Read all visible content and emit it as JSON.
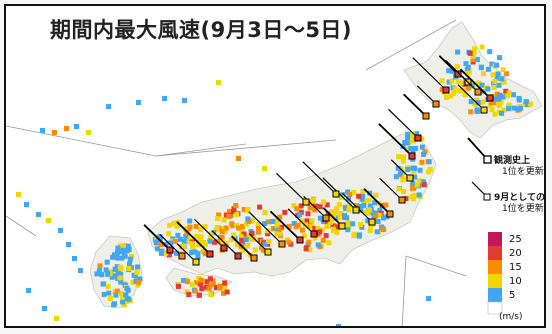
{
  "map": {
    "title": "期間内最大風速(9月3日〜5日)"
  },
  "legend": {
    "record_all_time": {
      "title": "観測史上",
      "subtitle": "1位を更新"
    },
    "record_september": {
      "title": "9月としての",
      "subtitle": "1位を更新"
    },
    "scale": {
      "unit": "(m/s)",
      "bins": [
        {
          "label": "25",
          "color": "#c2185b"
        },
        {
          "label": "20",
          "color": "#e53935"
        },
        {
          "label": "15",
          "color": "#fb8c00"
        },
        {
          "label": "10",
          "color": "#f2d600"
        },
        {
          "label": "5",
          "color": "#42a5f5"
        }
      ],
      "bottom_color": "#ffffff"
    }
  }
}
